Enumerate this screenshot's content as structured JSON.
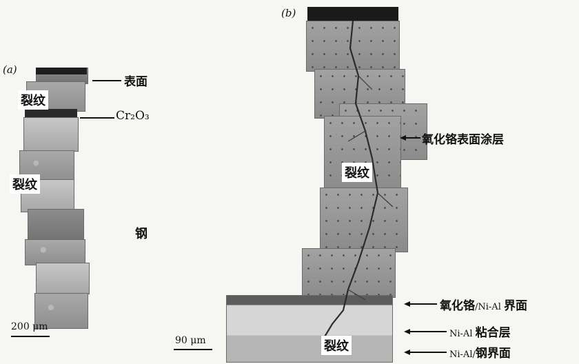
{
  "panel_a": {
    "label": "(a)",
    "crack_label_1": "裂纹",
    "crack_label_2": "裂纹",
    "annotations": {
      "surface": "表面",
      "oxide": "Cr₂O₃",
      "steel": "钢"
    },
    "scale_text": "200 μm"
  },
  "panel_b": {
    "label": "(b)",
    "crack_label_1": "裂纹",
    "crack_label_2": "裂纹",
    "annotations": {
      "coating": "氧化铬表面涂层",
      "oxide_interface_prefix": "氧化铬",
      "oxide_interface_mid": "/Ni-Al ",
      "oxide_interface_suffix": "界面",
      "bond_prefix": "Ni-Al ",
      "bond_suffix": "粘合层",
      "steel_interface_prefix": "Ni-Al/",
      "steel_interface_suffix": "钢界面"
    },
    "scale_text": "90 μm"
  }
}
